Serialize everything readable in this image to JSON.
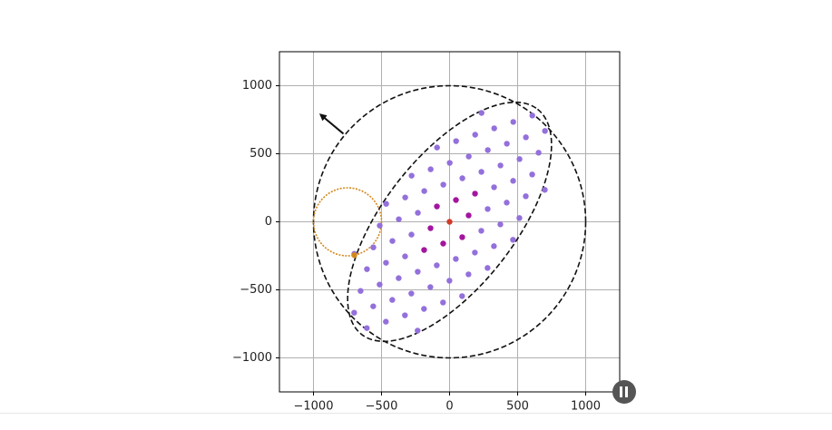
{
  "chart_data": {
    "type": "scatter",
    "xlim": [
      -1250,
      1250
    ],
    "ylim": [
      -1250,
      1250
    ],
    "xticks": [
      {
        "value": -1000,
        "label": "−1000"
      },
      {
        "value": -500,
        "label": "−500"
      },
      0,
      500,
      1000
    ],
    "yticks": [
      {
        "value": -1000,
        "label": "−1000"
      },
      {
        "value": -500,
        "label": "−500"
      },
      0,
      500,
      1000
    ],
    "grid": true,
    "circles": [
      {
        "cx": 0,
        "cy": 0,
        "r": 1000,
        "color": "#111111",
        "dash": "dashed"
      },
      {
        "cx": -750,
        "cy": 0,
        "r": 250,
        "color": "#d4881c",
        "dash": "dotted"
      }
    ],
    "ellipses": [
      {
        "cx": 0,
        "cy": 0,
        "rx": 1050,
        "ry": 480,
        "angle": 52,
        "color": "#111111",
        "dash": "dashed"
      }
    ],
    "arrows": [
      {
        "x": [
          -780,
          -947
        ],
        "y": [
          647,
          787
        ],
        "color": "#111111"
      }
    ],
    "series": [
      {
        "color": "#9370db",
        "x": [
          -235,
          -188,
          -141,
          -94,
          94,
          141,
          188,
          235,
          -48,
          -1,
          46,
          234,
          281,
          328,
          -328,
          -281,
          -234,
          -46,
          1,
          48,
          92,
          139,
          186,
          233,
          280,
          327,
          374,
          421,
          468,
          -92,
          -139,
          -186,
          -233,
          -280,
          -327,
          -374,
          -421,
          -468,
          279,
          326,
          373,
          420,
          467,
          514,
          561,
          608,
          -279,
          -326,
          -373,
          -420,
          -467,
          -514,
          -561,
          -608,
          466,
          513,
          560,
          607,
          654,
          701,
          -466,
          -513,
          -560,
          -607,
          -654,
          -701,
          700,
          -700
        ],
        "y": [
          -800,
          -640,
          -480,
          -320,
          320,
          480,
          640,
          800,
          -593,
          -433,
          -273,
          367,
          527,
          687,
          -687,
          -527,
          -367,
          273,
          433,
          593,
          -546,
          -386,
          -226,
          -66,
          94,
          254,
          414,
          574,
          734,
          546,
          386,
          226,
          66,
          -94,
          -254,
          -414,
          -574,
          -734,
          -339,
          -179,
          -19,
          141,
          301,
          461,
          621,
          781,
          339,
          179,
          19,
          -141,
          -301,
          -461,
          -621,
          -781,
          -132,
          28,
          188,
          348,
          508,
          668,
          132,
          -28,
          -188,
          -348,
          -508,
          -668,
          235,
          -235
        ]
      },
      {
        "color": "#a3159f",
        "x": [
          140,
          -140,
          47,
          -47,
          187,
          -187,
          93,
          -93
        ],
        "y": [
          47,
          -47,
          160,
          -160,
          207,
          -207,
          -113,
          113
        ]
      },
      {
        "color": "#d23b2a",
        "x": [
          0
        ],
        "y": [
          0
        ]
      },
      {
        "color": "#d4881c",
        "x": [
          -700
        ],
        "y": [
          -245
        ]
      }
    ]
  }
}
